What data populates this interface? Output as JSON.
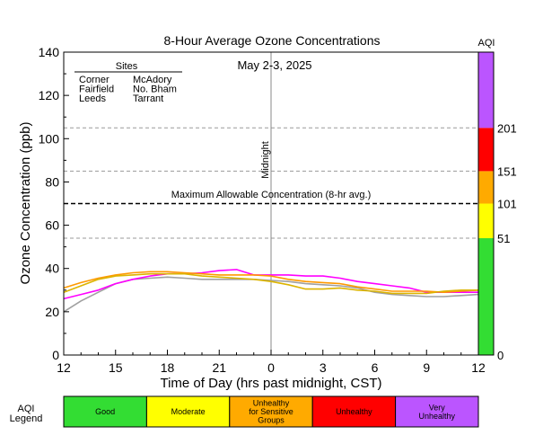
{
  "chart_data": {
    "type": "line",
    "title": "8-Hour Average Ozone Concentrations",
    "subtitle": "May 2-3, 2025",
    "xlabel": "Time of Day (hrs past midnight, CST)",
    "ylabel": "Ozone Concentration (ppb)",
    "ylim": [
      0,
      140
    ],
    "xlim": [
      0,
      24
    ],
    "x_tick_labels": [
      "12",
      "15",
      "18",
      "21",
      "0",
      "3",
      "6",
      "9",
      "12"
    ],
    "y_ticks": [
      0,
      20,
      40,
      60,
      80,
      100,
      120,
      140
    ],
    "midnight_label": "Midnight",
    "midnight_x": 12,
    "max_allowable": {
      "label": "Maximum Allowable Concentration (8-hr avg.)",
      "value": 70
    },
    "aqi_reference_lines": [
      54,
      85,
      105
    ],
    "legend_title": "Sites",
    "series": [
      {
        "name": "Corner",
        "color": "#ff0000",
        "values": []
      },
      {
        "name": "Fairfield",
        "color": "#33bbee",
        "values": []
      },
      {
        "name": "Leeds",
        "color": "#a0a0a0",
        "x": [
          0,
          1,
          2,
          3,
          4,
          5,
          6,
          7,
          8,
          9,
          10,
          11,
          12,
          13,
          14,
          15,
          16,
          17,
          18,
          19,
          20,
          21,
          22,
          23,
          24
        ],
        "values": [
          20,
          25,
          29,
          33,
          35,
          35.5,
          36,
          35.5,
          35,
          35,
          35,
          35,
          34.5,
          34,
          33,
          32.5,
          32,
          31,
          29,
          28,
          27.5,
          27,
          27,
          27.5,
          28
        ]
      },
      {
        "name": "McAdory",
        "color": "#ff00ff",
        "x": [
          0,
          1,
          2,
          3,
          4,
          5,
          6,
          7,
          8,
          9,
          10,
          11,
          12,
          13,
          14,
          15,
          16,
          17,
          18,
          19,
          20,
          21,
          22,
          23,
          24
        ],
        "values": [
          26,
          28,
          30,
          33,
          35,
          36.5,
          37.5,
          37.5,
          38,
          39,
          39.5,
          37,
          37,
          37,
          36.5,
          36.5,
          35.5,
          34,
          33,
          32,
          31,
          29,
          29,
          29,
          29
        ]
      },
      {
        "name": "No. Bham",
        "color": "#ff9900",
        "x": [
          0,
          1,
          2,
          3,
          4,
          5,
          6,
          7,
          8,
          9,
          10,
          11,
          12,
          13,
          14,
          15,
          16,
          17,
          18,
          19,
          20,
          21,
          22,
          23,
          24
        ],
        "values": [
          31,
          33.5,
          35.5,
          37,
          38,
          38.5,
          38.5,
          38,
          37.5,
          37,
          37,
          37,
          36.5,
          35,
          34,
          33.5,
          33,
          31.5,
          30.5,
          29.5,
          29.5,
          29.5,
          29,
          29.5,
          30
        ]
      },
      {
        "name": "Tarrant",
        "color": "#dcb400",
        "x": [
          0,
          1,
          2,
          3,
          4,
          5,
          6,
          7,
          8,
          9,
          10,
          11,
          12,
          13,
          14,
          15,
          16,
          17,
          18,
          19,
          20,
          21,
          22,
          23,
          24
        ],
        "values": [
          29,
          32,
          35,
          36.5,
          37,
          37.5,
          37.5,
          37.5,
          36.5,
          36,
          35.5,
          35,
          34,
          32.5,
          30.5,
          30.5,
          31,
          30,
          29.5,
          28.5,
          28.5,
          28.5,
          29.5,
          30,
          30
        ]
      }
    ],
    "aqi_bar": {
      "title": "AQI",
      "segments": [
        {
          "from": 0,
          "to": 54,
          "color": "#33dd33"
        },
        {
          "from": 54,
          "to": 70,
          "color": "#ffff00"
        },
        {
          "from": 70,
          "to": 85,
          "color": "#ffaa00"
        },
        {
          "from": 85,
          "to": 105,
          "color": "#ff0000"
        },
        {
          "from": 105,
          "to": 140,
          "color": "#bb55ff"
        }
      ],
      "labels": [
        {
          "text": "0",
          "at": 0
        },
        {
          "text": "51",
          "at": 54
        },
        {
          "text": "101",
          "at": 70
        },
        {
          "text": "151",
          "at": 85
        },
        {
          "text": "201",
          "at": 105
        }
      ]
    },
    "aqi_legend": {
      "title_lines": [
        "AQI",
        "Legend"
      ],
      "items": [
        {
          "lines": [
            "Good"
          ],
          "color": "#33dd33"
        },
        {
          "lines": [
            "Moderate"
          ],
          "color": "#ffff00"
        },
        {
          "lines": [
            "Unhealthy",
            "for Sensitive",
            "Groups"
          ],
          "color": "#ffaa00"
        },
        {
          "lines": [
            "Unhealthy"
          ],
          "color": "#ff0000"
        },
        {
          "lines": [
            "Very",
            "Unhealthy"
          ],
          "color": "#bb55ff"
        }
      ]
    }
  }
}
